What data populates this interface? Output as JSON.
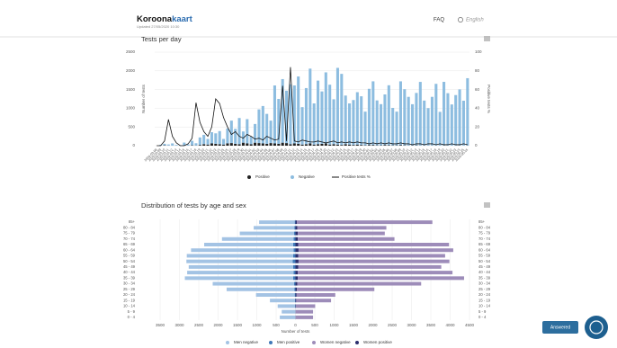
{
  "header": {
    "brand_left": "Koroona",
    "brand_right": "kaart",
    "updated": "Updated 27/05/2020 10:30",
    "faq": "FAQ",
    "language": "English"
  },
  "widget": {
    "button": "Answered"
  },
  "chart_data": [
    {
      "type": "bar",
      "title": "Tests per day",
      "ylabel": "Number of tests",
      "y2label": "Positive tests %",
      "categories": [
        "2020-03-08",
        "2020-03-09",
        "2020-03-10",
        "2020-03-11",
        "2020-03-12",
        "2020-03-13",
        "2020-03-14",
        "2020-03-15",
        "2020-03-16",
        "2020-03-17",
        "2020-03-18",
        "2020-03-19",
        "2020-03-20",
        "2020-03-21",
        "2020-03-22",
        "2020-03-23",
        "2020-03-24",
        "2020-03-25",
        "2020-03-26",
        "2020-03-27",
        "2020-03-28",
        "2020-03-29",
        "2020-03-30",
        "2020-03-31",
        "2020-04-01",
        "2020-04-02",
        "2020-04-03",
        "2020-04-04",
        "2020-04-05",
        "2020-04-06",
        "2020-04-07",
        "2020-04-08",
        "2020-04-09",
        "2020-04-10",
        "2020-04-11",
        "2020-04-12",
        "2020-04-13",
        "2020-04-14",
        "2020-04-15",
        "2020-04-16",
        "2020-04-17",
        "2020-04-18",
        "2020-04-19",
        "2020-04-20",
        "2020-04-21",
        "2020-04-22",
        "2020-04-23",
        "2020-04-24",
        "2020-04-25",
        "2020-04-26",
        "2020-04-27",
        "2020-04-28",
        "2020-04-29",
        "2020-04-30",
        "2020-05-01",
        "2020-05-02",
        "2020-05-03",
        "2020-05-04",
        "2020-05-05",
        "2020-05-06",
        "2020-05-07",
        "2020-05-08",
        "2020-05-09",
        "2020-05-10",
        "2020-05-11",
        "2020-05-12",
        "2020-05-13",
        "2020-05-14",
        "2020-05-15",
        "2020-05-16",
        "2020-05-17",
        "2020-05-18",
        "2020-05-19",
        "2020-05-20",
        "2020-05-21",
        "2020-05-22",
        "2020-05-23",
        "2020-05-24",
        "2020-05-25",
        "2020-05-26"
      ],
      "series": [
        {
          "name": "Positive",
          "color": "#222222",
          "values": [
            0,
            2,
            10,
            3,
            1,
            0,
            0,
            3,
            2,
            10,
            5,
            20,
            40,
            30,
            60,
            50,
            40,
            30,
            60,
            70,
            50,
            40,
            80,
            60,
            40,
            80,
            70,
            60,
            50,
            70,
            60,
            50,
            80,
            70,
            40,
            60,
            50,
            30,
            40,
            60,
            30,
            40,
            50,
            60,
            30,
            40,
            30,
            20,
            40,
            30,
            20,
            30,
            20,
            10,
            20,
            20,
            10,
            10,
            20,
            15,
            10,
            10,
            20,
            10,
            5,
            8,
            10,
            5,
            6,
            4,
            5,
            3,
            4,
            6,
            3,
            2,
            3,
            5,
            2,
            4
          ]
        },
        {
          "name": "Negative",
          "color": "#8dbde0",
          "values": [
            0,
            20,
            40,
            30,
            60,
            20,
            10,
            80,
            30,
            120,
            60,
            200,
            250,
            150,
            300,
            280,
            350,
            150,
            400,
            600,
            400,
            700,
            300,
            650,
            200,
            500,
            900,
            1000,
            800,
            600,
            1550,
            1200,
            1700,
            1400,
            1600,
            1550,
            1800,
            1000,
            1500,
            2000,
            1100,
            1700,
            1400,
            1900,
            1600,
            1200,
            2050,
            1900,
            1300,
            1100,
            1200,
            1400,
            1300,
            900,
            1500,
            1700,
            1200,
            1100,
            1350,
            1600,
            1000,
            900,
            1700,
            1500,
            1300,
            1100,
            1400,
            1700,
            1200,
            1000,
            1300,
            1650,
            900,
            1700,
            1400,
            1100,
            1350,
            1500,
            1200,
            1800
          ]
        },
        {
          "name": "Positive tests %",
          "color": "#111111",
          "type": "line",
          "axis": "y2",
          "values": [
            0,
            0,
            5,
            28,
            10,
            3,
            0,
            0,
            2,
            8,
            46,
            25,
            15,
            10,
            20,
            50,
            45,
            30,
            20,
            12,
            15,
            10,
            8,
            12,
            10,
            7,
            8,
            6,
            10,
            8,
            6,
            7,
            64,
            5,
            84,
            5,
            4,
            6,
            5,
            4,
            4,
            5,
            4,
            3,
            4,
            5,
            3,
            4,
            3,
            4,
            3,
            4,
            3,
            3,
            2,
            3,
            2,
            3,
            2,
            3,
            2,
            2,
            3,
            2,
            2,
            1,
            2,
            2,
            1,
            2,
            2,
            1,
            2,
            1,
            1,
            2,
            1,
            1,
            2,
            1
          ]
        }
      ],
      "ylim": [
        0,
        2500
      ],
      "yticks": [
        0,
        500,
        1000,
        1500,
        2000,
        2500
      ],
      "y2lim": [
        0,
        100
      ],
      "y2ticks": [
        0,
        20,
        40,
        60,
        80,
        100
      ],
      "grid": true,
      "legend": "bottom"
    },
    {
      "type": "bar",
      "horizontal": true,
      "title": "Distribution of tests by age and sex",
      "xlabel": "Number of tests",
      "categories": [
        "85+",
        "80 - 84",
        "75 - 79",
        "70 - 74",
        "65 - 69",
        "60 - 64",
        "55 - 59",
        "50 - 54",
        "45 - 49",
        "40 - 44",
        "35 - 39",
        "30 - 34",
        "25 - 29",
        "20 - 24",
        "15 - 19",
        "10 - 14",
        "5 - 9",
        "0 - 4"
      ],
      "series": [
        {
          "name": "Men negative",
          "color": "#a3c3e4",
          "values": [
            -920,
            -1050,
            -1400,
            -1850,
            -2300,
            -2650,
            -2750,
            -2750,
            -2700,
            -2750,
            -2800,
            -2100,
            -1750,
            -1000,
            -650,
            -450,
            -350,
            -400
          ]
        },
        {
          "name": "Men positive",
          "color": "#3f78b8",
          "values": [
            -20,
            -30,
            -40,
            -50,
            -60,
            -50,
            -60,
            -70,
            -60,
            -50,
            -60,
            -40,
            -30,
            -20,
            -10,
            -10,
            -5,
            -5
          ]
        },
        {
          "name": "Women negative",
          "color": "#9d8cb9",
          "values": [
            3500,
            2300,
            2250,
            2500,
            3900,
            4000,
            3800,
            3900,
            3700,
            4000,
            4300,
            3200,
            2000,
            1000,
            900,
            500,
            450,
            450
          ]
        },
        {
          "name": "Women positive",
          "color": "#2c2f6e",
          "values": [
            40,
            50,
            60,
            60,
            70,
            80,
            70,
            80,
            70,
            60,
            60,
            50,
            40,
            30,
            20,
            10,
            5,
            5
          ]
        }
      ],
      "xlim": [
        -3500,
        4500
      ],
      "xticks": [
        {
          "value": -3500,
          "label": "3500"
        },
        {
          "value": -3000,
          "label": "3000"
        },
        {
          "value": -2500,
          "label": "2500"
        },
        {
          "value": -2000,
          "label": "2000"
        },
        {
          "value": -1500,
          "label": "1500"
        },
        {
          "value": -1000,
          "label": "1000"
        },
        {
          "value": -500,
          "label": "500"
        },
        0,
        500,
        1000,
        1500,
        2000,
        2500,
        3000,
        3500,
        4000,
        4500
      ],
      "grid": true,
      "legend": "bottom"
    }
  ]
}
